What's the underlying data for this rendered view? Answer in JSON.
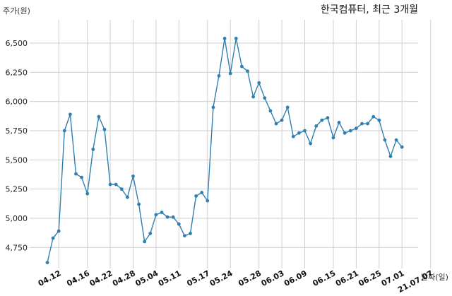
{
  "chart_data": {
    "type": "line",
    "title": "한국컴퓨터, 최근 3개월",
    "xlabel": "날짜(일)",
    "ylabel": "주가(원)",
    "ylim": [
      4570,
      6700
    ],
    "grid": true,
    "yticks": [
      4750,
      5000,
      5250,
      5500,
      5750,
      6000,
      6250,
      6500
    ],
    "ytick_labels": [
      "4,750",
      "5,000",
      "5,250",
      "5,500",
      "5,750",
      "6,000",
      "6,250",
      "6,500"
    ],
    "xtick_labels": [
      "04.12",
      "04.16",
      "04.22",
      "04.28",
      "05.04",
      "05.11",
      "05.17",
      "05.24",
      "05.28",
      "06.03",
      "06.09",
      "06.15",
      "06.21",
      "06.25",
      "07.01",
      "21.07.07"
    ],
    "xtick_index": [
      2,
      7,
      11,
      15,
      19,
      23,
      28,
      32,
      37,
      41,
      45,
      50,
      54,
      58,
      62,
      67
    ],
    "series": [
      {
        "color": "#2f7fb1",
        "values": [
          4620,
          4830,
          4890,
          5750,
          5890,
          5380,
          5350,
          5210,
          5590,
          5870,
          5760,
          5290,
          5290,
          5250,
          5180,
          5360,
          5120,
          4800,
          4870,
          5030,
          5050,
          5010,
          5010,
          4950,
          4850,
          4870,
          5190,
          5220,
          5150,
          5950,
          6220,
          6540,
          6240,
          6540,
          6300,
          6260,
          6040,
          6160,
          6030,
          5920,
          5810,
          5840,
          5950,
          5700,
          5730,
          5750,
          5640,
          5790,
          5840,
          5860,
          5690,
          5820,
          5730,
          5750,
          5770,
          5810,
          5810,
          5870,
          5840,
          5670,
          5530,
          5670,
          5610
        ]
      }
    ]
  }
}
